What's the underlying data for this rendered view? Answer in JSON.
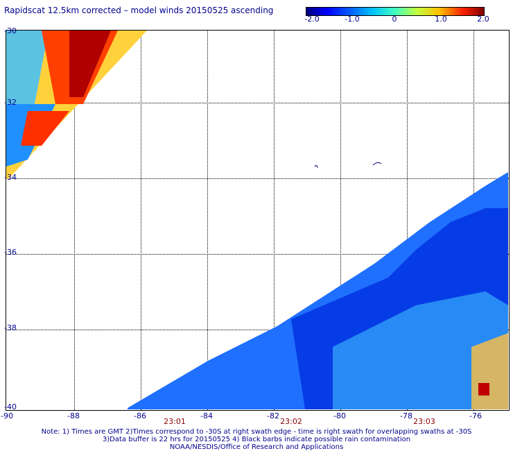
{
  "title": "Rapidscat 12.5km corrected – model winds 20150525 ascending",
  "colorbar": {
    "ticks": [
      "-2.0",
      "-1.0",
      "0",
      "1.0",
      "2.0"
    ]
  },
  "axes": {
    "lat_labels": [
      "-30",
      "-32",
      "-34",
      "-36",
      "-38",
      "-40"
    ],
    "lon_labels": [
      "-90",
      "-88",
      "-86",
      "-84",
      "-82",
      "-80",
      "-78",
      "-76"
    ],
    "time_labels": [
      "23:01",
      "23:02",
      "23:03"
    ]
  },
  "notes": {
    "line1": "Note: 1) Times are GMT 2)Times correspond to -30S at right swath edge - time is right swath for overlapping swaths at -30S",
    "line2": "3)Data buffer is 22 hrs for 20150525 4) Black barbs indicate possible rain contamination",
    "line3": "NOAA/NESDIS/Office of Research and Applications"
  },
  "colors": {
    "text": "#00008b",
    "time_text": "#8b0000"
  }
}
